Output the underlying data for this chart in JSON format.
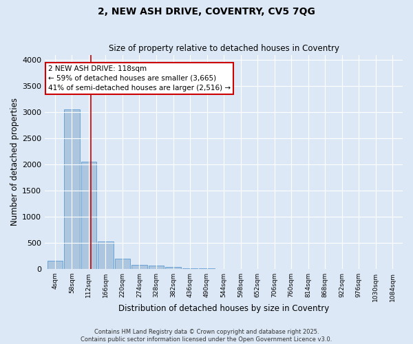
{
  "title": "2, NEW ASH DRIVE, COVENTRY, CV5 7QG",
  "subtitle": "Size of property relative to detached houses in Coventry",
  "xlabel": "Distribution of detached houses by size in Coventry",
  "ylabel": "Number of detached properties",
  "bar_color": "#adc6e0",
  "bar_edge_color": "#5b9bd5",
  "background_color": "#dce8f5",
  "grid_color": "#ffffff",
  "bins": [
    4,
    58,
    112,
    166,
    220,
    274,
    328,
    382,
    436,
    490,
    544,
    598,
    652,
    706,
    760,
    814,
    868,
    922,
    976,
    1030,
    1084
  ],
  "values": [
    150,
    3050,
    2050,
    530,
    200,
    80,
    60,
    40,
    15,
    5,
    2,
    1,
    0,
    0,
    0,
    0,
    0,
    0,
    0,
    0
  ],
  "property_size": 118,
  "vline_color": "#cc0000",
  "annotation_text": "2 NEW ASH DRIVE: 118sqm\n← 59% of detached houses are smaller (3,665)\n41% of semi-detached houses are larger (2,516) →",
  "annotation_box_color": "#cc0000",
  "ylim": [
    0,
    4100
  ],
  "yticks": [
    0,
    500,
    1000,
    1500,
    2000,
    2500,
    3000,
    3500,
    4000
  ],
  "footer_line1": "Contains HM Land Registry data © Crown copyright and database right 2025.",
  "footer_line2": "Contains public sector information licensed under the Open Government Licence v3.0."
}
